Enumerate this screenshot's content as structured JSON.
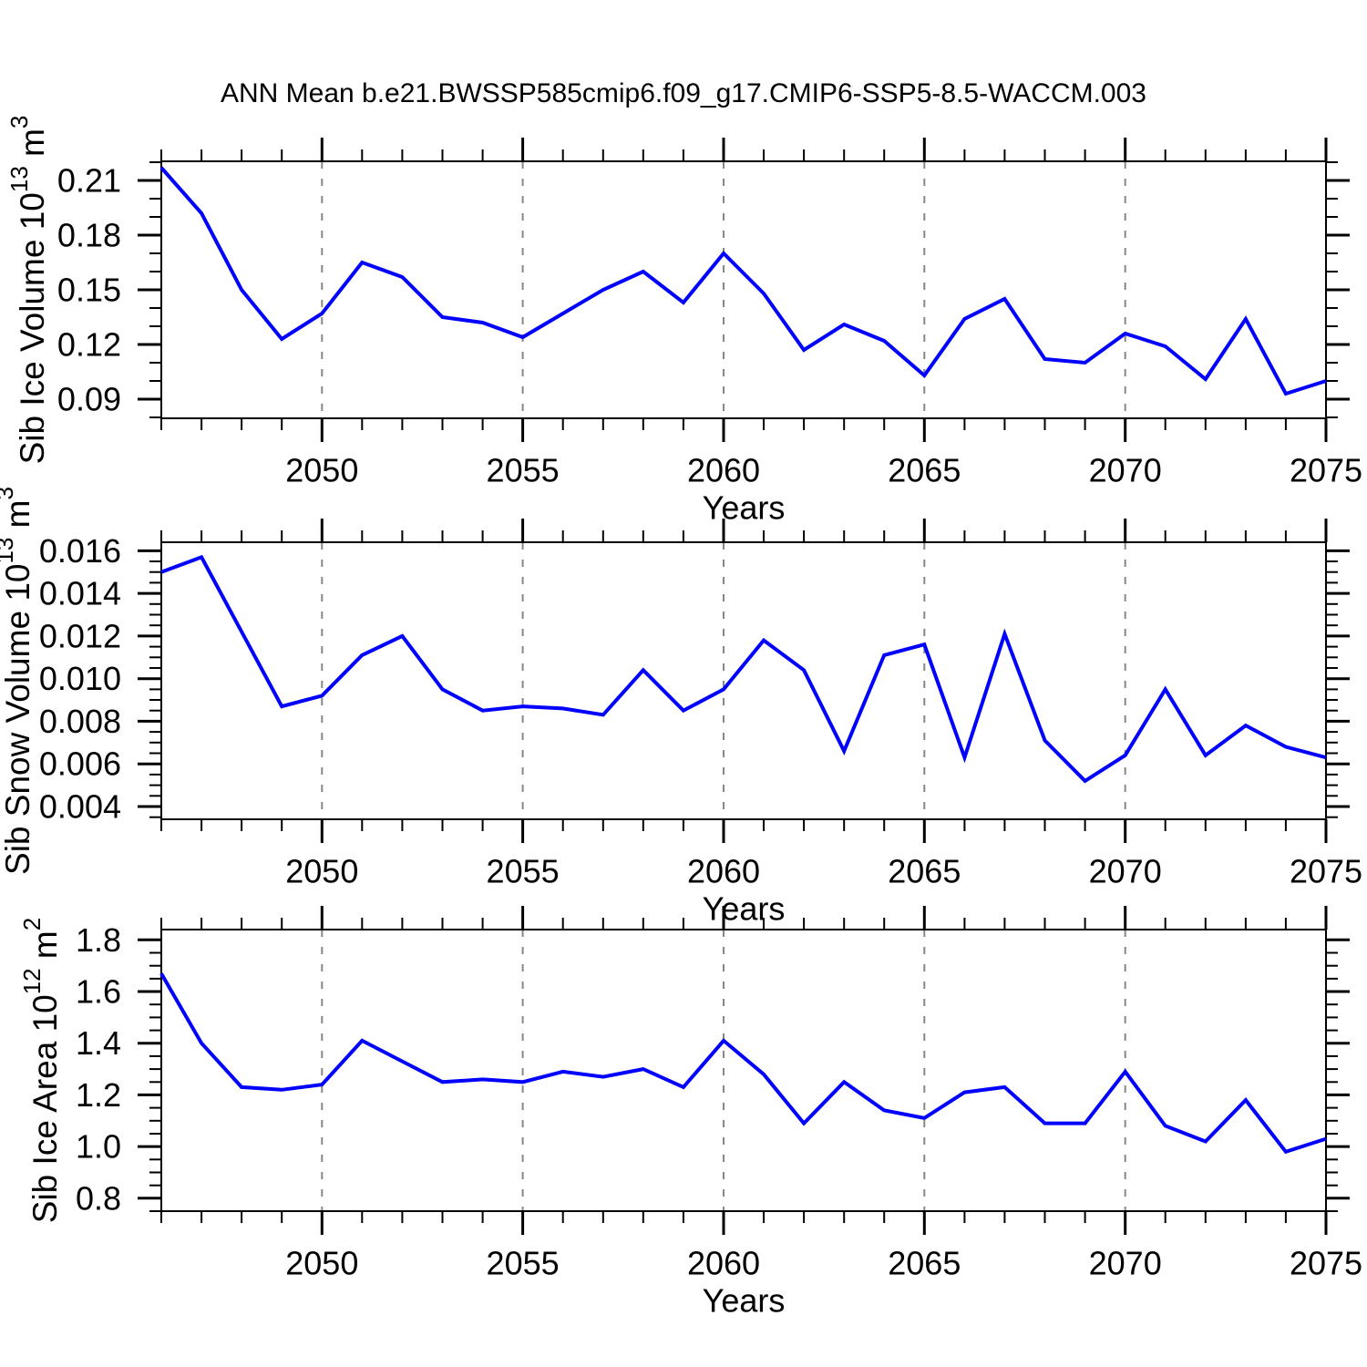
{
  "title": "ANN Mean b.e21.BWSSP585cmip6.f09_g17.CMIP6-SSP5-8.5-WACCM.003",
  "colors": {
    "line": "#0000ff",
    "frame": "#000000",
    "gridline": "#878787",
    "background": "#ffffff"
  },
  "chart_data": [
    {
      "id": "sib-ice-volume",
      "type": "line",
      "ylabel": "Sib Ice Volume 10^13 m^3",
      "ylabel_parts": [
        {
          "text": "Sib Ice Volume 10",
          "sup": false
        },
        {
          "text": "13",
          "sup": true
        },
        {
          "text": " m",
          "sup": false
        },
        {
          "text": "3",
          "sup": true
        }
      ],
      "xlabel": "Years",
      "x_start": 2046,
      "x_end": 2075,
      "x": [
        2046,
        2047,
        2048,
        2049,
        2050,
        2051,
        2052,
        2053,
        2054,
        2055,
        2056,
        2057,
        2058,
        2059,
        2060,
        2061,
        2062,
        2063,
        2064,
        2065,
        2066,
        2067,
        2068,
        2069,
        2070,
        2071,
        2072,
        2073,
        2074,
        2075
      ],
      "values": [
        0.217,
        0.192,
        0.15,
        0.123,
        0.137,
        0.165,
        0.157,
        0.135,
        0.132,
        0.124,
        0.137,
        0.15,
        0.16,
        0.143,
        0.17,
        0.148,
        0.117,
        0.131,
        0.122,
        0.103,
        0.134,
        0.145,
        0.112,
        0.11,
        0.126,
        0.119,
        0.101,
        0.134,
        0.093,
        0.1
      ],
      "ylim": [
        0.0795,
        0.2205
      ],
      "ytick_major": {
        "values": [
          0.21,
          0.18,
          0.15,
          0.12,
          0.09
        ],
        "labels": [
          "0.21",
          "0.18",
          "0.15",
          "0.12",
          "0.09"
        ]
      },
      "ytick_minor_step": 0.01,
      "xtick_major": {
        "values": [
          2050,
          2055,
          2060,
          2065,
          2070,
          2075
        ],
        "labels": [
          "2050",
          "2055",
          "2060",
          "2065",
          "2070",
          "2075"
        ]
      },
      "xtick_minor_step": 1,
      "gridline_years": [
        2050,
        2055,
        2060,
        2065,
        2070
      ],
      "grid": "vertical-dashed",
      "legend": null
    },
    {
      "id": "sib-snow-volume",
      "type": "line",
      "ylabel": "Sib Snow Volume 10^13 m^3",
      "ylabel_parts": [
        {
          "text": "Sib Snow Volume 10",
          "sup": false
        },
        {
          "text": "13",
          "sup": true
        },
        {
          "text": " m",
          "sup": false
        },
        {
          "text": "3",
          "sup": true
        }
      ],
      "xlabel": "Years",
      "x_start": 2046,
      "x_end": 2075,
      "x": [
        2046,
        2047,
        2048,
        2049,
        2050,
        2051,
        2052,
        2053,
        2054,
        2055,
        2056,
        2057,
        2058,
        2059,
        2060,
        2061,
        2062,
        2063,
        2064,
        2065,
        2066,
        2067,
        2068,
        2069,
        2070,
        2071,
        2072,
        2073,
        2074,
        2075
      ],
      "values": [
        0.015,
        0.0157,
        0.0122,
        0.0087,
        0.0092,
        0.0111,
        0.012,
        0.0095,
        0.0085,
        0.0087,
        0.0086,
        0.0083,
        0.0104,
        0.0085,
        0.0095,
        0.0118,
        0.0104,
        0.0066,
        0.0111,
        0.0116,
        0.0063,
        0.0121,
        0.0071,
        0.0052,
        0.0064,
        0.0095,
        0.0064,
        0.0078,
        0.0068,
        0.0063
      ],
      "ylim": [
        0.0034,
        0.0164
      ],
      "ytick_major": {
        "values": [
          0.016,
          0.014,
          0.012,
          0.01,
          0.008,
          0.006,
          0.004
        ],
        "labels": [
          "0.016",
          "0.014",
          "0.012",
          "0.010",
          "0.008",
          "0.006",
          "0.004"
        ]
      },
      "ytick_minor_step": 0.0005,
      "xtick_major": {
        "values": [
          2050,
          2055,
          2060,
          2065,
          2070,
          2075
        ],
        "labels": [
          "2050",
          "2055",
          "2060",
          "2065",
          "2070",
          "2075"
        ]
      },
      "xtick_minor_step": 1,
      "gridline_years": [
        2050,
        2055,
        2060,
        2065,
        2070
      ],
      "grid": "vertical-dashed",
      "legend": null
    },
    {
      "id": "sib-ice-area",
      "type": "line",
      "ylabel": "Sib Ice Area 10^12 m^2",
      "ylabel_parts": [
        {
          "text": "Sib Ice Area 10",
          "sup": false
        },
        {
          "text": "12",
          "sup": true
        },
        {
          "text": " m",
          "sup": false
        },
        {
          "text": "2",
          "sup": true
        }
      ],
      "xlabel": "Years",
      "x_start": 2046,
      "x_end": 2075,
      "x": [
        2046,
        2047,
        2048,
        2049,
        2050,
        2051,
        2052,
        2053,
        2054,
        2055,
        2056,
        2057,
        2058,
        2059,
        2060,
        2061,
        2062,
        2063,
        2064,
        2065,
        2066,
        2067,
        2068,
        2069,
        2070,
        2071,
        2072,
        2073,
        2074,
        2075
      ],
      "values": [
        1.67,
        1.4,
        1.23,
        1.22,
        1.24,
        1.41,
        1.33,
        1.25,
        1.26,
        1.25,
        1.29,
        1.27,
        1.3,
        1.23,
        1.41,
        1.28,
        1.09,
        1.25,
        1.14,
        1.11,
        1.21,
        1.23,
        1.09,
        1.09,
        1.29,
        1.08,
        1.02,
        1.18,
        0.98,
        1.03
      ],
      "ylim": [
        0.75,
        1.84
      ],
      "ytick_major": {
        "values": [
          1.8,
          1.6,
          1.4,
          1.2,
          1.0,
          0.8
        ],
        "labels": [
          "1.8",
          "1.6",
          "1.4",
          "1.2",
          "1.0",
          "0.8"
        ]
      },
      "ytick_minor_step": 0.05,
      "xtick_major": {
        "values": [
          2050,
          2055,
          2060,
          2065,
          2070,
          2075
        ],
        "labels": [
          "2050",
          "2055",
          "2060",
          "2065",
          "2070",
          "2075"
        ]
      },
      "xtick_minor_step": 1,
      "gridline_years": [
        2050,
        2055,
        2060,
        2065,
        2070
      ],
      "grid": "vertical-dashed",
      "legend": null
    }
  ]
}
